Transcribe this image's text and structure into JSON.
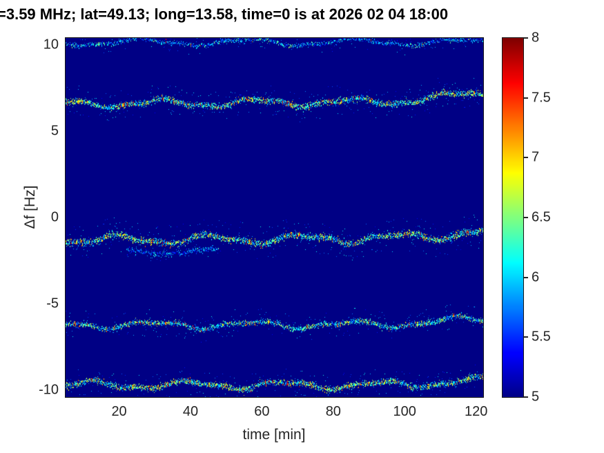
{
  "chart_data": {
    "type": "heatmap",
    "title": "=3.59 MHz;  lat=49.13; long=13.58, time=0 is at 2026 02 04 18:00",
    "xlabel": "time [min]",
    "ylabel": "Δf [Hz]",
    "xlim": [
      5,
      122
    ],
    "ylim": [
      -10.4,
      10.4
    ],
    "xticks": [
      20,
      40,
      60,
      80,
      100,
      120
    ],
    "yticks": [
      10,
      5,
      0,
      -5,
      -10
    ],
    "grid": false,
    "colormap": "jet",
    "background_value": 5,
    "colorbar": {
      "min": 5,
      "max": 8,
      "ticks": [
        8,
        7.5,
        7,
        6.5,
        6,
        5.5,
        5
      ],
      "position": "right"
    },
    "traces": [
      {
        "name": "doppler-line-plus10",
        "center": 10.18,
        "slope": 0.0,
        "end_rise": 0.0,
        "amp1": 0.18,
        "period1": 30,
        "phase1": 2.4,
        "amp2": 0.06,
        "period2": 12,
        "phase2": 0.9,
        "base_intensity": 5.5,
        "intensity_spread": 0.9,
        "hot_prob": 0.02,
        "core_halfwidth": 0.07,
        "fuzz_halfwidth": 0.28,
        "fuzz_prob": 0.22,
        "density": 0.45
      },
      {
        "name": "doppler-line-plus6p7",
        "center": 6.68,
        "slope": 0.15,
        "end_rise": 0.45,
        "amp1": 0.2,
        "period1": 27,
        "phase1": 0.5,
        "amp2": 0.07,
        "period2": 11,
        "phase2": 1.7,
        "base_intensity": 5.8,
        "intensity_spread": 1.2,
        "hot_prob": 0.14,
        "core_halfwidth": 0.09,
        "fuzz_halfwidth": 0.45,
        "fuzz_prob": 0.5,
        "density": 1.0
      },
      {
        "name": "doppler-line-minus1p2",
        "center": -1.22,
        "slope": 0.1,
        "end_rise": 0.35,
        "amp1": 0.22,
        "period1": 26,
        "phase1": 3.1,
        "amp2": 0.09,
        "period2": 12,
        "phase2": 4.2,
        "base_intensity": 5.8,
        "intensity_spread": 1.2,
        "hot_prob": 0.14,
        "core_halfwidth": 0.1,
        "fuzz_halfwidth": 0.5,
        "fuzz_prob": 0.55,
        "density": 1.0
      },
      {
        "name": "doppler-line-minus1p9-echo",
        "center": -1.95,
        "tspan": [
          22,
          48
        ],
        "slope": 0.0,
        "end_rise": 0.0,
        "amp1": 0.15,
        "period1": 26,
        "phase1": 3.1,
        "amp2": 0.0,
        "period2": 12,
        "phase2": 0.0,
        "base_intensity": 5.5,
        "intensity_spread": 0.7,
        "hot_prob": 0.0,
        "core_halfwidth": 0.08,
        "fuzz_halfwidth": 0.25,
        "fuzz_prob": 0.3,
        "density": 0.5
      },
      {
        "name": "doppler-line-minus6p2",
        "center": -6.18,
        "slope": 0.05,
        "end_rise": 0.3,
        "amp1": 0.18,
        "period1": 28,
        "phase1": 1.2,
        "amp2": 0.08,
        "period2": 13,
        "phase2": 2.6,
        "base_intensity": 5.7,
        "intensity_spread": 1.1,
        "hot_prob": 0.1,
        "core_halfwidth": 0.08,
        "fuzz_halfwidth": 0.4,
        "fuzz_prob": 0.4,
        "density": 0.85
      },
      {
        "name": "doppler-line-minus9p7",
        "center": -9.68,
        "slope": 0.0,
        "end_rise": 0.25,
        "amp1": 0.2,
        "period1": 27,
        "phase1": 5.0,
        "amp2": 0.08,
        "period2": 12,
        "phase2": 1.1,
        "base_intensity": 5.8,
        "intensity_spread": 1.2,
        "hot_prob": 0.12,
        "core_halfwidth": 0.09,
        "fuzz_halfwidth": 0.4,
        "fuzz_prob": 0.45,
        "density": 0.95
      }
    ]
  }
}
